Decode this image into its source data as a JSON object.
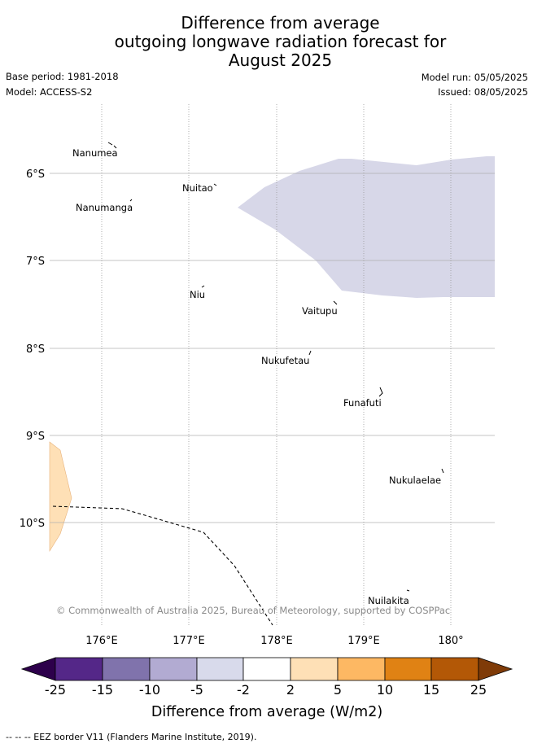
{
  "header": {
    "title_lines": [
      "Difference from average",
      "outgoing longwave radiation forecast for",
      "August 2025"
    ],
    "base_period": "Base period: 1981-2018",
    "model": "Model: ACCESS-S2",
    "model_run": "Model run: 05/05/2025",
    "issued": "Issued: 08/05/2025"
  },
  "map": {
    "lat_labels": [
      "6°S",
      "7°S",
      "8°S",
      "9°S",
      "10°S"
    ],
    "lon_labels": [
      "176°E",
      "177°E",
      "178°E",
      "179°E",
      "180°"
    ],
    "places": [
      "Nanumea",
      "Nuitao",
      "Nanumanga",
      "Niu",
      "Vaitupu",
      "Nukufetau",
      "Funafuti",
      "Nukulaelae",
      "Nuilakita"
    ],
    "copyright": "© Commonwealth of Australia 2025, Bureau of Meteorology, supported by COSPPac",
    "field_colors": {
      "lavender": "#d7d7e8",
      "light_orange": "#fee0b6"
    }
  },
  "legend": {
    "tick_labels": [
      "-25",
      "-15",
      "-10",
      "-5",
      "-2",
      "2",
      "5",
      "10",
      "15",
      "25"
    ],
    "colors": [
      "#2d004b",
      "#542788",
      "#8073ac",
      "#b2abd2",
      "#d8daeb",
      "#ffffff",
      "#fee0b6",
      "#fdb863",
      "#e08214",
      "#b35806",
      "#7f3b08"
    ],
    "label": "Difference from average (W/m2)"
  },
  "footer": {
    "eez_note": "--  --  -- EEZ border V11 (Flanders Marine Institute, 2019)."
  }
}
